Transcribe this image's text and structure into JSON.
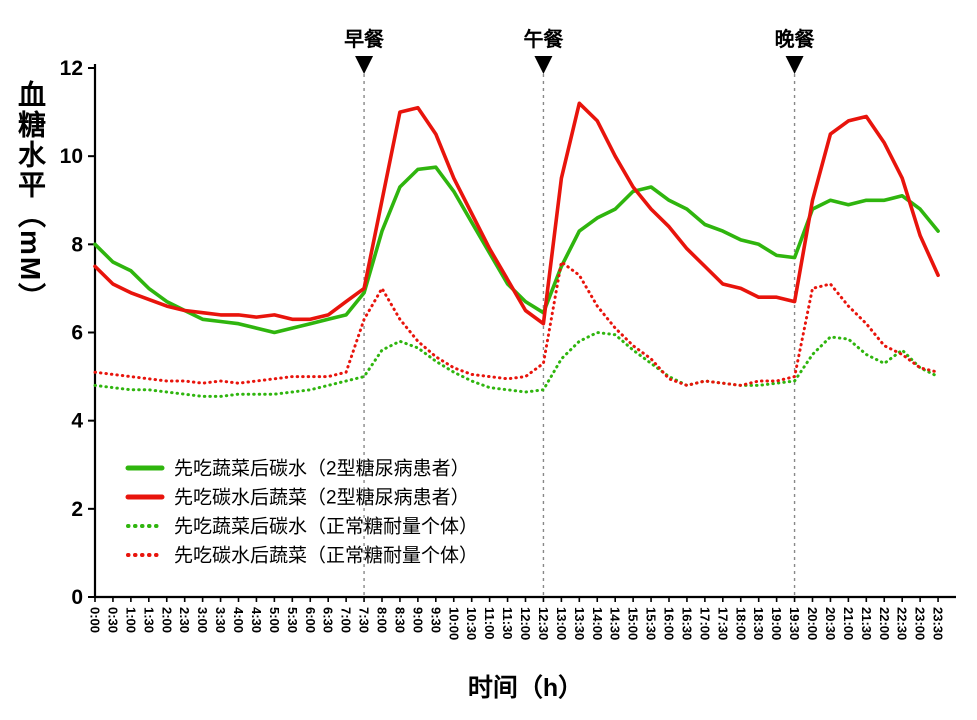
{
  "page": {
    "background": "#ffffff"
  },
  "chart_data": {
    "type": "line",
    "title": "",
    "xlabel": "时间（h）",
    "ylabel": "血糖水平（mM）",
    "ylim": [
      0,
      12
    ],
    "xlim_hours": [
      0,
      24
    ],
    "yticks": [
      0,
      2,
      4,
      6,
      8,
      10,
      12
    ],
    "grid": false,
    "legend_position": "lower-left",
    "x": [
      0,
      0.5,
      1,
      1.5,
      2,
      2.5,
      3,
      3.5,
      4,
      4.5,
      5,
      5.5,
      6,
      6.5,
      7,
      7.5,
      8,
      8.5,
      9,
      9.5,
      10,
      10.5,
      11,
      11.5,
      12,
      12.5,
      13,
      13.5,
      14,
      14.5,
      15,
      15.5,
      16,
      16.5,
      17,
      17.5,
      18,
      18.5,
      19,
      19.5,
      20,
      20.5,
      21,
      21.5,
      22,
      22.5,
      23,
      23.5
    ],
    "xtick_labels": [
      "0:00",
      "0:30",
      "1:00",
      "1:30",
      "2:00",
      "2:30",
      "3:00",
      "3:30",
      "4:00",
      "4:30",
      "5:00",
      "5:30",
      "6:00",
      "6:30",
      "7:00",
      "7:30",
      "8:00",
      "8:30",
      "9:00",
      "9:30",
      "10:00",
      "10:30",
      "11:00",
      "11:30",
      "12:00",
      "12:30",
      "13:00",
      "13:30",
      "14:00",
      "14:30",
      "15:00",
      "15:30",
      "16:00",
      "16:30",
      "17:00",
      "17:30",
      "18:00",
      "18:30",
      "19:00",
      "19:30",
      "20:00",
      "20:30",
      "21:00",
      "21:30",
      "22:00",
      "22:30",
      "23:00",
      "23:30"
    ],
    "meals": [
      {
        "label": "早餐",
        "x": 7.5
      },
      {
        "label": "午餐",
        "x": 12.5
      },
      {
        "label": "晚餐",
        "x": 19.5
      }
    ],
    "series": [
      {
        "name": "先吃蔬菜后碳水（2型糖尿病患者）",
        "color": "#2fb50e",
        "style": "solid",
        "values": [
          8.0,
          7.6,
          7.4,
          7.0,
          6.7,
          6.5,
          6.3,
          6.25,
          6.2,
          6.1,
          6.0,
          6.1,
          6.2,
          6.3,
          6.4,
          6.9,
          8.3,
          9.3,
          9.7,
          9.75,
          9.2,
          8.5,
          7.8,
          7.1,
          6.7,
          6.45,
          7.5,
          8.3,
          8.6,
          8.8,
          9.2,
          9.3,
          9.0,
          8.8,
          8.45,
          8.3,
          8.1,
          8.0,
          7.75,
          7.7,
          8.8,
          9.0,
          8.9,
          9.0,
          9.0,
          9.1,
          8.8,
          8.3
        ]
      },
      {
        "name": "先吃碳水后蔬菜（2型糖尿病患者）",
        "color": "#e8140c",
        "style": "solid",
        "values": [
          7.5,
          7.1,
          6.9,
          6.75,
          6.6,
          6.5,
          6.45,
          6.4,
          6.4,
          6.35,
          6.4,
          6.3,
          6.3,
          6.4,
          6.7,
          7.0,
          9.0,
          11.0,
          11.1,
          10.5,
          9.5,
          8.7,
          7.9,
          7.2,
          6.5,
          6.2,
          9.5,
          11.2,
          10.8,
          10.0,
          9.3,
          8.8,
          8.4,
          7.9,
          7.5,
          7.1,
          7.0,
          6.8,
          6.8,
          6.7,
          9.0,
          10.5,
          10.8,
          10.9,
          10.3,
          9.5,
          8.2,
          7.3
        ]
      },
      {
        "name": "先吃蔬菜后碳水（正常糖耐量个体）",
        "color": "#2fb50e",
        "style": "dotted",
        "values": [
          4.8,
          4.75,
          4.7,
          4.7,
          4.65,
          4.6,
          4.55,
          4.55,
          4.6,
          4.6,
          4.6,
          4.65,
          4.7,
          4.8,
          4.9,
          5.0,
          5.6,
          5.8,
          5.65,
          5.35,
          5.1,
          4.9,
          4.75,
          4.7,
          4.65,
          4.7,
          5.4,
          5.8,
          6.0,
          5.95,
          5.6,
          5.3,
          5.0,
          4.8,
          4.9,
          4.85,
          4.8,
          4.8,
          4.85,
          4.9,
          5.5,
          5.9,
          5.85,
          5.5,
          5.3,
          5.6,
          5.2,
          5.0
        ]
      },
      {
        "name": "先吃碳水后蔬菜（正常糖耐量个体）",
        "color": "#e8140c",
        "style": "dotted",
        "values": [
          5.1,
          5.05,
          5.0,
          4.95,
          4.9,
          4.9,
          4.85,
          4.9,
          4.85,
          4.9,
          4.95,
          5.0,
          5.0,
          5.0,
          5.1,
          6.3,
          7.0,
          6.3,
          5.8,
          5.45,
          5.2,
          5.05,
          5.0,
          4.95,
          5.0,
          5.3,
          7.6,
          7.3,
          6.6,
          6.1,
          5.7,
          5.4,
          4.95,
          4.8,
          4.9,
          4.85,
          4.8,
          4.9,
          4.9,
          5.0,
          7.0,
          7.1,
          6.6,
          6.2,
          5.7,
          5.5,
          5.2,
          5.1
        ]
      }
    ]
  }
}
